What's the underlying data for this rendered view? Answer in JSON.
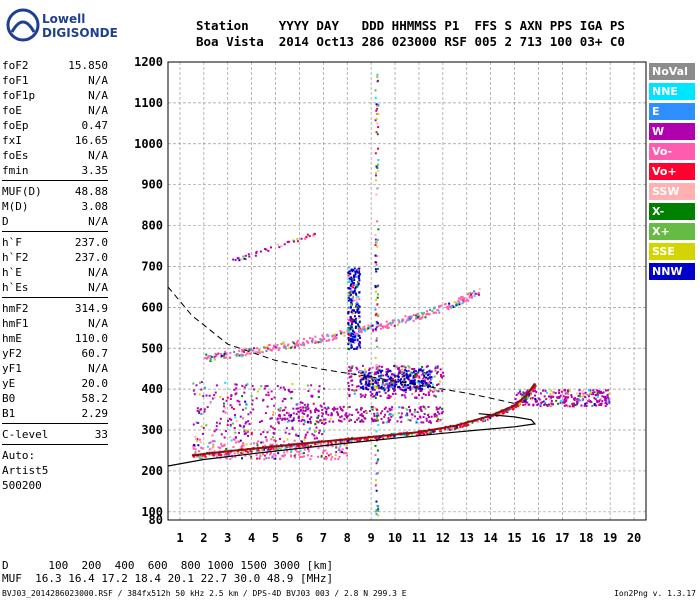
{
  "logo": {
    "line1": "Lowell",
    "line2": "DIGISONDE"
  },
  "header": {
    "labels": "Station    YYYY DAY   DDD HHMMSS P1  FFS S AXN PPS IGA PS",
    "values": "Boa Vista  2014 Oct13 286 023000 RSF 005 2 713 100 03+ C0"
  },
  "params": [
    {
      "k": "foF2",
      "v": "15.850"
    },
    {
      "k": "foF1",
      "v": "N/A"
    },
    {
      "k": "foF1p",
      "v": "N/A"
    },
    {
      "k": "foE",
      "v": "N/A"
    },
    {
      "k": "foEp",
      "v": "0.47"
    },
    {
      "k": "fxI",
      "v": "16.65"
    },
    {
      "k": "foEs",
      "v": "N/A"
    },
    {
      "k": "fmin",
      "v": "3.35"
    },
    {
      "sep": true
    },
    {
      "k": "MUF(D)",
      "v": "48.88"
    },
    {
      "k": "M(D)",
      "v": "3.08"
    },
    {
      "k": "D",
      "v": "N/A"
    },
    {
      "sep": true
    },
    {
      "k": "h`F",
      "v": "237.0"
    },
    {
      "k": "h`F2",
      "v": "237.0"
    },
    {
      "k": "h`E",
      "v": "N/A"
    },
    {
      "k": "h`Es",
      "v": "N/A"
    },
    {
      "sep": true
    },
    {
      "k": "hmF2",
      "v": "314.9"
    },
    {
      "k": "hmF1",
      "v": "N/A"
    },
    {
      "k": "hmE",
      "v": "110.0"
    },
    {
      "k": "yF2",
      "v": "60.7"
    },
    {
      "k": "yF1",
      "v": "N/A"
    },
    {
      "k": "yE",
      "v": "20.0"
    },
    {
      "k": "B0",
      "v": "58.2"
    },
    {
      "k": "B1",
      "v": "2.29"
    },
    {
      "sep": true
    },
    {
      "k": "C-level",
      "v": "33"
    },
    {
      "sep": true
    },
    {
      "plain": "Auto:"
    },
    {
      "plain": "Artist5"
    },
    {
      "plain": "500200"
    }
  ],
  "legend": [
    {
      "label": "NoVal",
      "color": "#8c8c8c"
    },
    {
      "label": "NNE",
      "color": "#00e5ff"
    },
    {
      "label": "E",
      "color": "#2f8fff"
    },
    {
      "label": "W",
      "color": "#b000b0"
    },
    {
      "label": "Vo-",
      "color": "#ff5cb0"
    },
    {
      "label": "Vo+",
      "color": "#ff0030"
    },
    {
      "label": "SSW",
      "color": "#ffb0b0"
    },
    {
      "label": "X-",
      "color": "#008000"
    },
    {
      "label": "X+",
      "color": "#66bb44"
    },
    {
      "label": "SSE",
      "color": "#d4d400"
    },
    {
      "label": "NNW",
      "color": "#0000c8"
    }
  ],
  "bottom": {
    "line1": "D      100  200  400  600  800 1000 1500 3000 [km]",
    "line2": "MUF  16.3 16.4 17.2 18.4 20.1 22.7 30.0 48.9 [MHz]"
  },
  "footer": {
    "file": "BVJ03_2014286023000.RSF / 384fx512h 50 kHz 2.5 km / DPS-4D BVJ03 003 / 2.8 N 299.3 E",
    "version": "Ion2Png v. 1.3.17"
  },
  "chart_data": {
    "type": "scatter",
    "xlim": [
      0.5,
      20.5
    ],
    "ylim": [
      80,
      1200
    ],
    "x_ticks": [
      1,
      2,
      3,
      4,
      5,
      6,
      7,
      8,
      9,
      10,
      11,
      12,
      13,
      14,
      15,
      16,
      17,
      18,
      19,
      20
    ],
    "y_ticks": [
      80,
      100,
      200,
      300,
      400,
      500,
      600,
      700,
      800,
      900,
      1000,
      1100,
      1200
    ],
    "grid": true,
    "legend_position": "right",
    "trace_O": [
      [
        1.5,
        238
      ],
      [
        3,
        248
      ],
      [
        5,
        260
      ],
      [
        7,
        272
      ],
      [
        9,
        283
      ],
      [
        11,
        295
      ],
      [
        12.5,
        310
      ],
      [
        14,
        335
      ],
      [
        15,
        360
      ],
      [
        15.5,
        385
      ],
      [
        15.85,
        414
      ]
    ],
    "profile_solid": [
      [
        0.5,
        212
      ],
      [
        2,
        228
      ],
      [
        4,
        242
      ],
      [
        6,
        255
      ],
      [
        8,
        268
      ],
      [
        10,
        280
      ],
      [
        12,
        292
      ],
      [
        13.5,
        300
      ],
      [
        15,
        308
      ],
      [
        15.85,
        315
      ],
      [
        15.7,
        325
      ],
      [
        15,
        332
      ],
      [
        13.5,
        340
      ]
    ],
    "profile_dashed": [
      [
        0.5,
        650
      ],
      [
        1.5,
        580
      ],
      [
        3,
        510
      ],
      [
        5,
        470
      ],
      [
        7,
        448
      ],
      [
        9,
        430
      ],
      [
        11,
        410
      ],
      [
        13,
        390
      ],
      [
        14,
        378
      ],
      [
        15,
        365
      ]
    ],
    "second_hop": [
      [
        2,
        478
      ],
      [
        4,
        495
      ],
      [
        6,
        515
      ],
      [
        8,
        540
      ],
      [
        10,
        565
      ],
      [
        12,
        600
      ],
      [
        13.5,
        640
      ]
    ],
    "upper_trace": [
      [
        3,
        712
      ],
      [
        5,
        750
      ],
      [
        7,
        790
      ]
    ],
    "clusters": [
      {
        "color": "#b000b0",
        "x": [
          8,
          12
        ],
        "y": [
          380,
          460
        ]
      },
      {
        "color": "#0000c8",
        "x": [
          8.5,
          11.5
        ],
        "y": [
          400,
          450
        ]
      },
      {
        "color": "#b000b0",
        "x": [
          15,
          19
        ],
        "y": [
          360,
          400
        ]
      },
      {
        "color": "#b000b0",
        "x": [
          5,
          12
        ],
        "y": [
          320,
          360
        ]
      },
      {
        "color": "#ff5cb0",
        "x": [
          1.5,
          8
        ],
        "y": [
          230,
          280
        ]
      },
      {
        "color": "#b000b0",
        "x": [
          1.5,
          7
        ],
        "y": [
          280,
          420
        ]
      },
      {
        "color": "#0000c8",
        "x": [
          8,
          8.5
        ],
        "y": [
          500,
          700
        ]
      }
    ]
  }
}
